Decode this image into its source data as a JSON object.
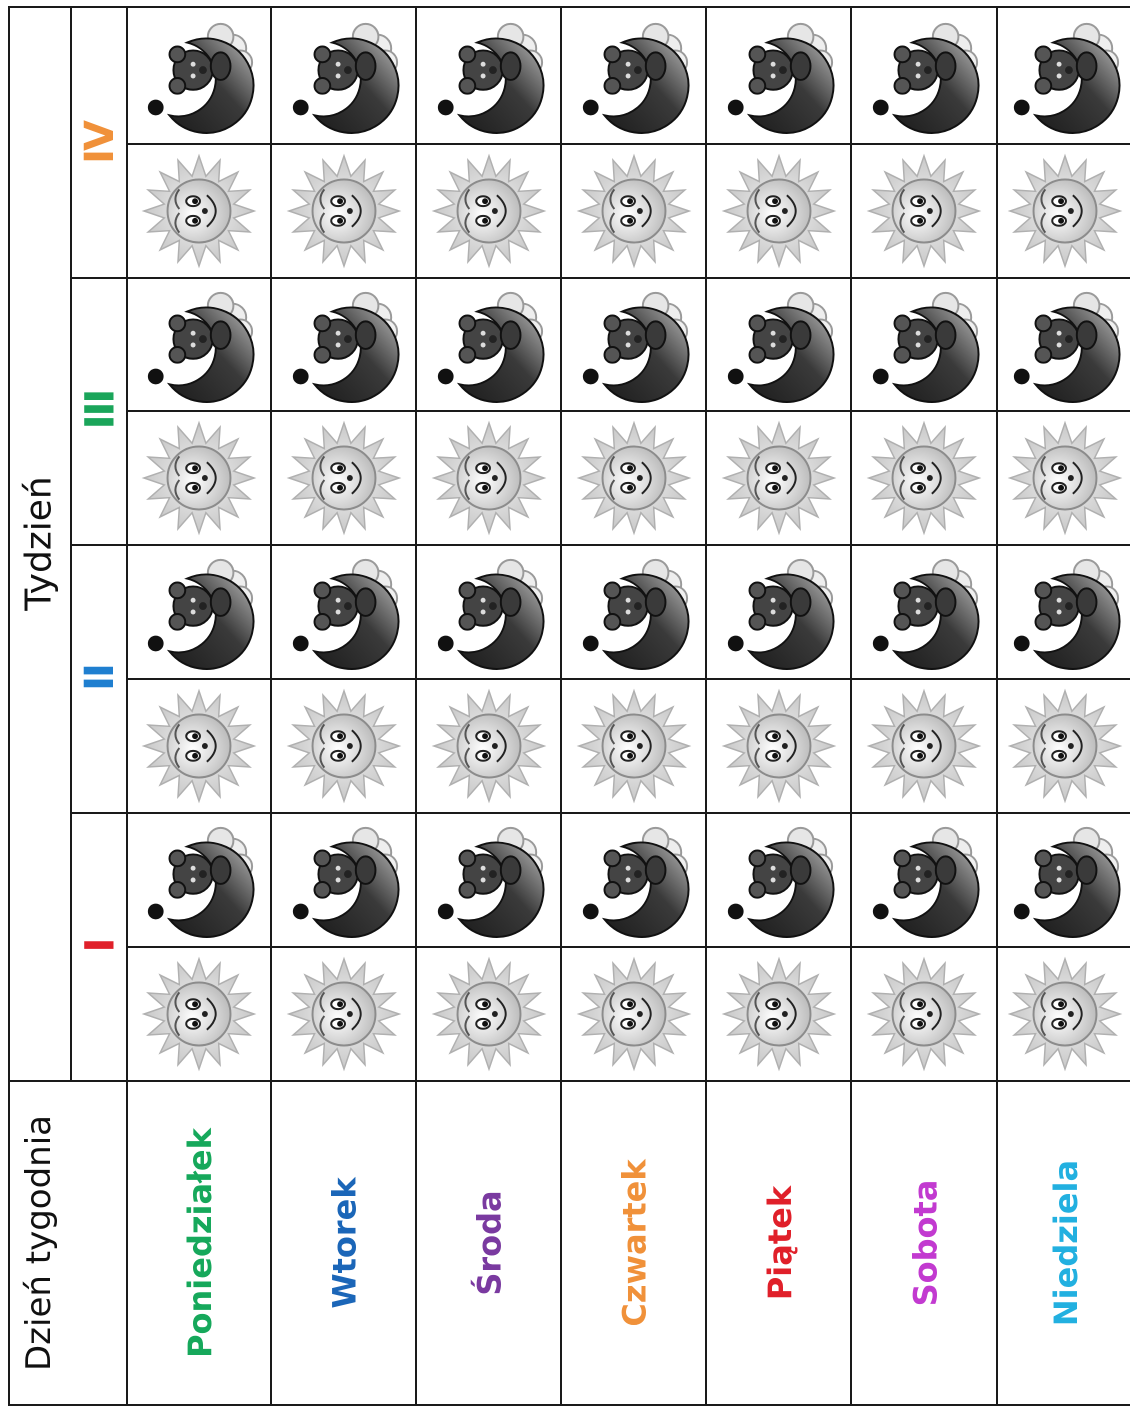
{
  "header": {
    "week_title": "Tydzień",
    "day_title": "Dzień tygodnia"
  },
  "weeks": [
    {
      "label": "I",
      "color": "#e0202a"
    },
    {
      "label": "II",
      "color": "#1f7fd0"
    },
    {
      "label": "III",
      "color": "#1aa55a"
    },
    {
      "label": "IV",
      "color": "#f0913a"
    }
  ],
  "days": [
    {
      "label": "Poniedziałek",
      "color": "#16a85b"
    },
    {
      "label": "Wtorek",
      "color": "#1b66b8"
    },
    {
      "label": "Środa",
      "color": "#7a3aa0"
    },
    {
      "label": "Czwartek",
      "color": "#f0913a"
    },
    {
      "label": "Piątek",
      "color": "#e0202a"
    },
    {
      "label": "Sobota",
      "color": "#c23ad0"
    },
    {
      "label": "Niedziela",
      "color": "#22b0e0"
    }
  ],
  "icons": {
    "day": "sun-icon",
    "night": "moon-bear-icon"
  }
}
